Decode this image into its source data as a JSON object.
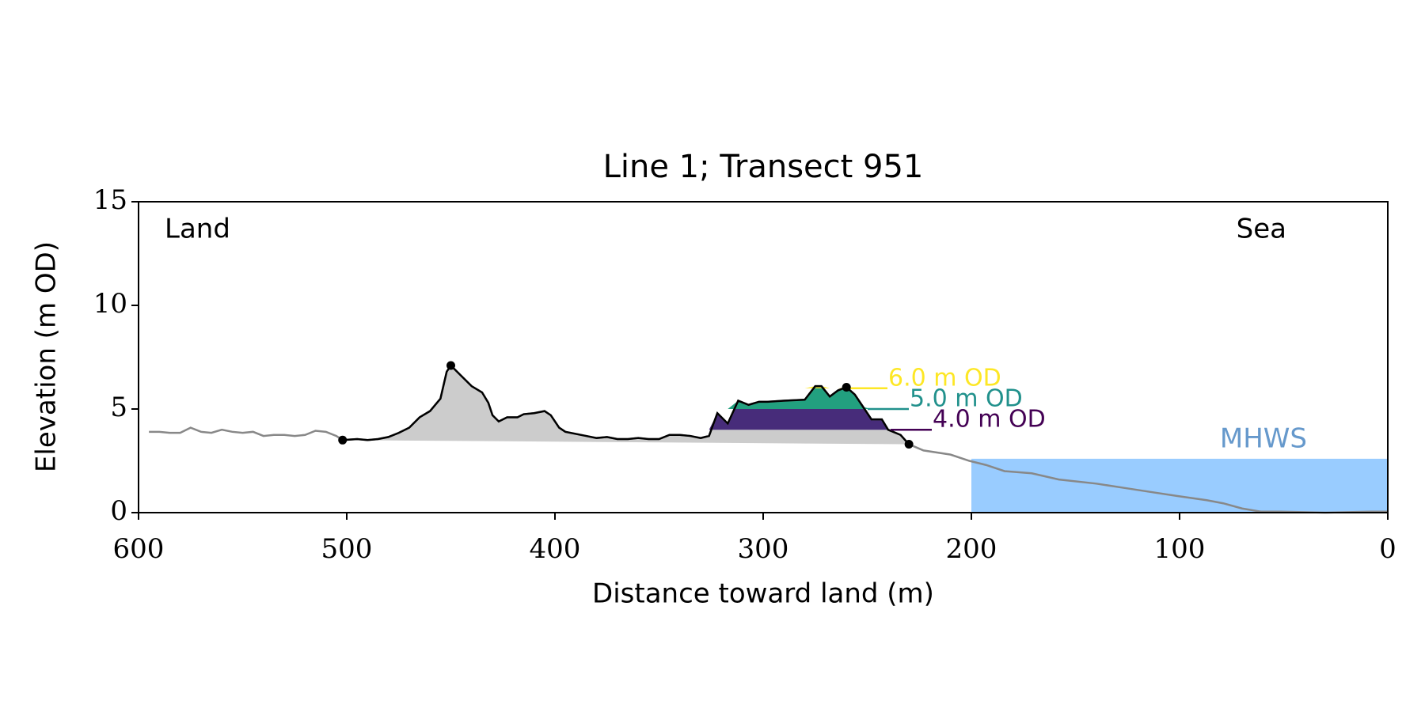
{
  "chart_data": {
    "type": "line",
    "title": "Line 1; Transect 951",
    "xlabel": "Distance toward land (m)",
    "ylabel": "Elevation (m OD)",
    "left_label": "Land",
    "right_label": "Sea",
    "xlim": [
      600,
      0
    ],
    "xticks": [
      600,
      500,
      400,
      300,
      200,
      100,
      0
    ],
    "ylim": [
      0,
      15
    ],
    "yticks": [
      0,
      5,
      10,
      15
    ],
    "profile": {
      "color": "#888888",
      "x": [
        595,
        590,
        585,
        580,
        575,
        570,
        565,
        560,
        555,
        550,
        545,
        540,
        535,
        530,
        525,
        520,
        515,
        510,
        505,
        502,
        495,
        490,
        485,
        480,
        475,
        470,
        465,
        460,
        455,
        452,
        450,
        447,
        445,
        440,
        435,
        432,
        430,
        427,
        423,
        418,
        415,
        410,
        405,
        402,
        398,
        395,
        390,
        385,
        380,
        375,
        370,
        365,
        360,
        355,
        350,
        345,
        340,
        335,
        330,
        326,
        322,
        317,
        312,
        307,
        302,
        298,
        290,
        280,
        275,
        272,
        268,
        264,
        260,
        256,
        252,
        248,
        243,
        240,
        234,
        230,
        223,
        210,
        201,
        193,
        184,
        171,
        158,
        140,
        127,
        114,
        101,
        87,
        79,
        70,
        61,
        52,
        30,
        8,
        0
      ],
      "values": [
        3.9,
        3.9,
        3.85,
        3.85,
        4.1,
        3.9,
        3.85,
        4.0,
        3.9,
        3.85,
        3.9,
        3.7,
        3.75,
        3.75,
        3.7,
        3.75,
        3.95,
        3.9,
        3.7,
        3.5,
        3.55,
        3.5,
        3.55,
        3.65,
        3.85,
        4.1,
        4.6,
        4.9,
        5.5,
        6.8,
        7.1,
        6.8,
        6.6,
        6.1,
        5.8,
        5.3,
        4.7,
        4.4,
        4.6,
        4.6,
        4.75,
        4.8,
        4.9,
        4.7,
        4.1,
        3.9,
        3.8,
        3.7,
        3.6,
        3.65,
        3.55,
        3.55,
        3.6,
        3.55,
        3.55,
        3.75,
        3.75,
        3.7,
        3.6,
        3.7,
        4.8,
        4.3,
        5.4,
        5.2,
        5.35,
        5.35,
        5.4,
        5.45,
        6.1,
        6.1,
        5.6,
        5.9,
        6.05,
        5.7,
        5.1,
        4.5,
        4.5,
        4.0,
        3.75,
        3.3,
        3.0,
        2.8,
        2.5,
        2.3,
        2.0,
        1.9,
        1.6,
        1.4,
        1.2,
        1.0,
        0.8,
        0.6,
        0.45,
        0.2,
        0.05,
        0.05,
        0.0,
        0.05,
        0.05
      ]
    },
    "extent": {
      "color": "#000000",
      "fill": "#cccccc",
      "x": [
        502,
        230
      ]
    },
    "points": {
      "color": "#000000",
      "x": [
        502,
        450,
        260,
        230
      ],
      "values": [
        3.5,
        7.1,
        6.05,
        3.3
      ]
    },
    "levels": [
      {
        "label": "4.0 m OD",
        "value": 4,
        "color": "#440154",
        "fill": "#472c7a",
        "x": [
          326,
          234
        ]
      },
      {
        "label": "5.0 m OD",
        "value": 5,
        "color": "#21918c",
        "fill": "#22a07f",
        "x": [
          326,
          234
        ]
      },
      {
        "label": "6.0 m OD",
        "value": 6,
        "color": "#fde725",
        "fill": "#fde725",
        "x": [
          326,
          234
        ]
      }
    ],
    "mhws": {
      "label": "MHWS",
      "value": 2.6,
      "x": [
        200,
        0
      ],
      "color": "#99ccff",
      "label_color": "#6699cc"
    }
  }
}
